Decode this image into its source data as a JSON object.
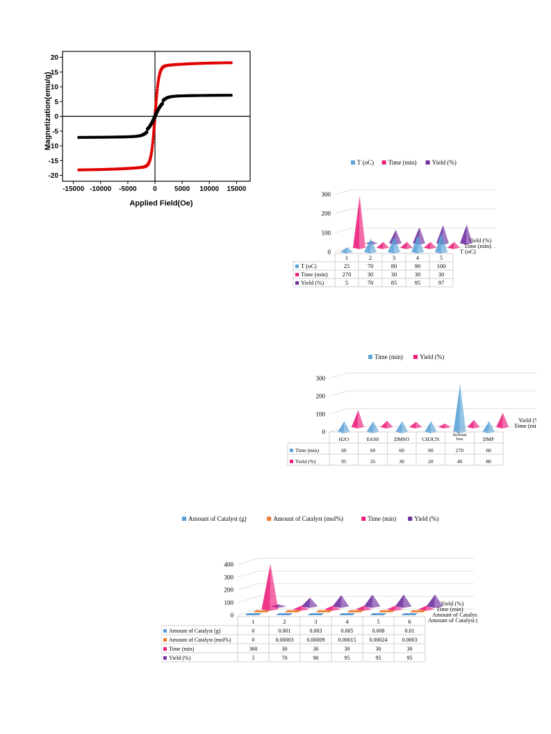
{
  "chart_data": [
    {
      "type": "scatter",
      "xlabel": "Applied Field(Oe)",
      "ylabel": "Magnetization(emu/g)",
      "xlim": [
        -17000,
        17500
      ],
      "ylim": [
        -22,
        22
      ],
      "xticks": [
        "-15000",
        "-10000",
        "-5000",
        "0",
        "5000",
        "10000",
        "15000"
      ],
      "xtick_values": [
        -15000,
        -10000,
        -5000,
        0,
        5000,
        10000,
        15000
      ],
      "yticks": [
        "-20",
        "-15",
        "-10",
        "-5",
        "0",
        "5",
        "10",
        "15",
        "20"
      ],
      "ytick_values": [
        -20,
        -15,
        -10,
        -5,
        0,
        5,
        10,
        15,
        20
      ],
      "series": [
        {
          "color": "#e00000",
          "ms": 18.3,
          "hk": 700,
          "xmin": -14000,
          "xmax": 14000
        },
        {
          "color": "#000000",
          "ms": 7.2,
          "hk": 1400,
          "xmin": -14000,
          "xmax": 14000
        }
      ]
    },
    {
      "type": "bar",
      "legend": [
        "T (oC)",
        "Time (min)",
        "Yield (%)"
      ],
      "colors": [
        "#5ba3d9",
        "#ec1f7c",
        "#7030a0"
      ],
      "categories": [
        "1",
        "2",
        "3",
        "4",
        "5"
      ],
      "values": [
        [
          25,
          70,
          80,
          90,
          100
        ],
        [
          270,
          30,
          30,
          30,
          30
        ],
        [
          5,
          70,
          85,
          95,
          97
        ]
      ],
      "yticks": [
        "0",
        "100",
        "200",
        "300"
      ],
      "ytick_values": [
        0,
        100,
        200,
        300
      ],
      "depth_labels": [
        "Yield (%)",
        "Time (min)",
        "T (oC)"
      ],
      "table_rows": [
        [
          "25",
          "70",
          "80",
          "90",
          "100"
        ],
        [
          "270",
          "30",
          "30",
          "30",
          "30"
        ],
        [
          "5",
          "70",
          "85",
          "95",
          "97"
        ]
      ]
    },
    {
      "type": "bar",
      "legend": [
        "Time (min)",
        "Yield (%)"
      ],
      "colors": [
        "#5ba3d9",
        "#ec1f7c"
      ],
      "categories": [
        "H2O",
        "EtOH",
        "DMSO",
        "CH3CN",
        "Solvent free",
        "DMF"
      ],
      "values": [
        [
          60,
          60,
          60,
          60,
          270,
          60
        ],
        [
          95,
          35,
          30,
          20,
          40,
          80
        ]
      ],
      "yticks": [
        "0",
        "100",
        "200",
        "300"
      ],
      "ytick_values": [
        0,
        100,
        200,
        300
      ],
      "depth_labels": [
        "Yield (%)",
        "Time (min)"
      ],
      "table_rows": [
        [
          "60",
          "60",
          "60",
          "60",
          "270",
          "60"
        ],
        [
          "95",
          "35",
          "30",
          "20",
          "40",
          "80"
        ]
      ]
    },
    {
      "type": "bar",
      "legend": [
        "Amount of Catalyst (g)",
        "Amount of Catalyst (mol%)",
        "Time (min)",
        "Yield (%)"
      ],
      "colors": [
        "#5b9bd5",
        "#ed7d31",
        "#ec1f7c",
        "#7030a0"
      ],
      "categories": [
        "1",
        "2",
        "3",
        "4",
        "5",
        "6"
      ],
      "values": [
        [
          0,
          0.001,
          0.003,
          0.005,
          0.008,
          0.01
        ],
        [
          0,
          3e-05,
          9e-05,
          0.00015,
          0.00024,
          0.0003
        ],
        [
          360,
          30,
          30,
          30,
          30,
          30
        ],
        [
          5,
          70,
          90,
          95,
          95,
          95
        ]
      ],
      "yticks": [
        "0",
        "100",
        "200",
        "300",
        "400"
      ],
      "ytick_values": [
        0,
        100,
        200,
        300,
        400
      ],
      "depth_labels": [
        "Yield (%)",
        "Time (min)",
        "Amount of Catalyst (mol%)",
        "Amount of Catalyst (g)"
      ],
      "table_rows": [
        [
          "0",
          "0.001",
          "0.003",
          "0.005",
          "0.008",
          "0.01"
        ],
        [
          "0",
          "0.00003",
          "0.00009",
          "0.00015",
          "0.00024",
          "0.0003"
        ],
        [
          "360",
          "30",
          "30",
          "30",
          "30",
          "30"
        ],
        [
          "5",
          "70",
          "90",
          "95",
          "95",
          "95"
        ]
      ]
    }
  ]
}
